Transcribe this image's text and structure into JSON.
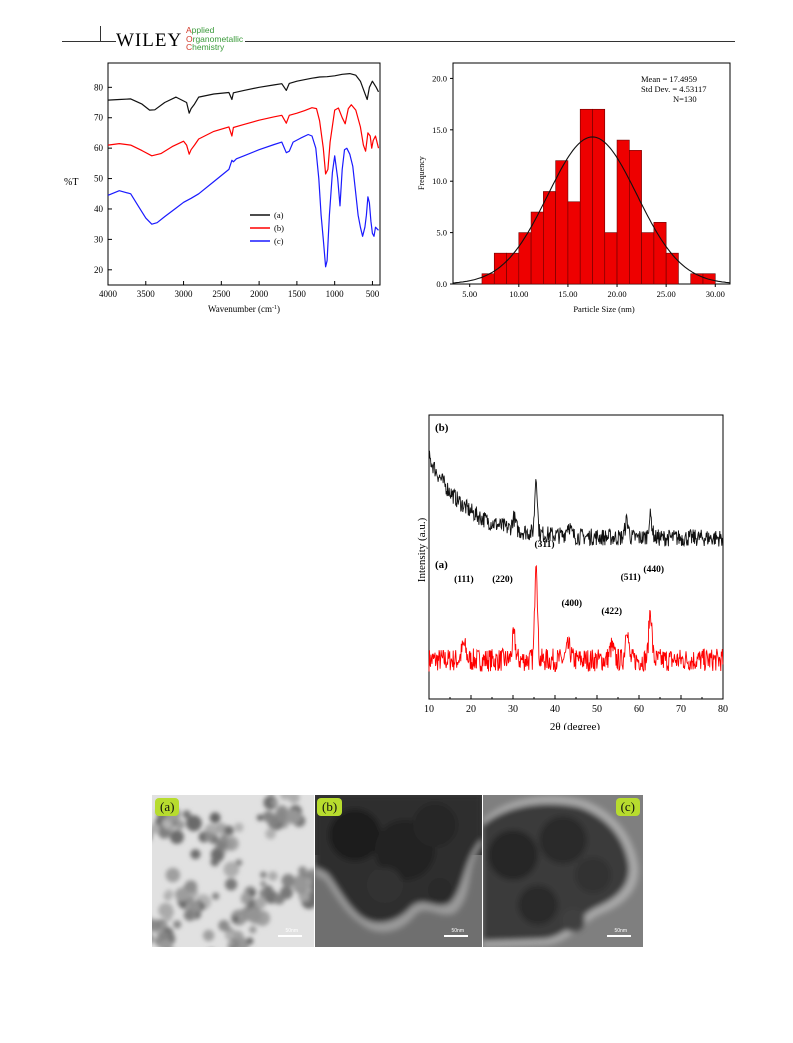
{
  "header": {
    "brand": "WILEY",
    "journal_lines": [
      {
        "cap": "A",
        "rest": "pplied"
      },
      {
        "cap": "O",
        "rest": "rganometallic"
      },
      {
        "cap": "C",
        "rest": "hemistry"
      }
    ]
  },
  "colors": {
    "red": "#ff0000",
    "blue": "#1a1aff",
    "black": "#111111",
    "label_bg": "#b7dc2e"
  },
  "chart_data": [
    {
      "type": "line",
      "id": "ftir",
      "xlabel": "Wavenumber (cm",
      "xlabel_sup": "-1",
      "xlabel_close": ")",
      "ylabel": "%T",
      "xlim": [
        4000,
        400
      ],
      "ylim": [
        15,
        88
      ],
      "xticks": [
        4000,
        3500,
        3000,
        2500,
        2000,
        1500,
        1000,
        500
      ],
      "yticks": [
        20,
        30,
        40,
        50,
        60,
        70,
        80
      ],
      "legend_position": "middle-right",
      "series": [
        {
          "name": "(a)",
          "color": "#111111",
          "points": [
            [
              4000,
              75.8
            ],
            [
              3850,
              76
            ],
            [
              3700,
              76.2
            ],
            [
              3550,
              74.5
            ],
            [
              3450,
              72.5
            ],
            [
              3380,
              72.6
            ],
            [
              3250,
              75
            ],
            [
              3100,
              76.8
            ],
            [
              2960,
              75
            ],
            [
              2925,
              71.5
            ],
            [
              2900,
              73
            ],
            [
              2855,
              74.5
            ],
            [
              2800,
              76.8
            ],
            [
              2600,
              77.8
            ],
            [
              2400,
              78.3
            ],
            [
              2360,
              76
            ],
            [
              2340,
              78.2
            ],
            [
              2200,
              79
            ],
            [
              2000,
              80
            ],
            [
              1800,
              80.8
            ],
            [
              1700,
              81.2
            ],
            [
              1640,
              79
            ],
            [
              1600,
              81.3
            ],
            [
              1500,
              82
            ],
            [
              1400,
              82.5
            ],
            [
              1300,
              83
            ],
            [
              1250,
              83.2
            ],
            [
              1200,
              83.4
            ],
            [
              1100,
              83.5
            ],
            [
              1000,
              83.8
            ],
            [
              900,
              84.3
            ],
            [
              800,
              84.5
            ],
            [
              720,
              84
            ],
            [
              660,
              82
            ],
            [
              600,
              78
            ],
            [
              570,
              76
            ],
            [
              540,
              80
            ],
            [
              500,
              82
            ],
            [
              450,
              80
            ],
            [
              420,
              78.5
            ]
          ]
        },
        {
          "name": "(b)",
          "color": "#ff0000",
          "points": [
            [
              4000,
              61
            ],
            [
              3850,
              61.5
            ],
            [
              3700,
              61
            ],
            [
              3550,
              59.2
            ],
            [
              3420,
              57.5
            ],
            [
              3300,
              58.2
            ],
            [
              3150,
              60.5
            ],
            [
              3000,
              62.3
            ],
            [
              2960,
              61
            ],
            [
              2925,
              58
            ],
            [
              2900,
              59.5
            ],
            [
              2855,
              61
            ],
            [
              2800,
              63
            ],
            [
              2600,
              65.5
            ],
            [
              2400,
              67
            ],
            [
              2360,
              64
            ],
            [
              2340,
              66.8
            ],
            [
              2200,
              67.8
            ],
            [
              2000,
              69.2
            ],
            [
              1800,
              70.3
            ],
            [
              1700,
              70.8
            ],
            [
              1640,
              68.2
            ],
            [
              1600,
              70.8
            ],
            [
              1500,
              71.5
            ],
            [
              1400,
              72.3
            ],
            [
              1300,
              73.3
            ],
            [
              1240,
              73
            ],
            [
              1200,
              69
            ],
            [
              1150,
              60
            ],
            [
              1120,
              51.5
            ],
            [
              1090,
              53
            ],
            [
              1060,
              62
            ],
            [
              1000,
              72.5
            ],
            [
              950,
              73.2
            ],
            [
              900,
              70
            ],
            [
              860,
              68
            ],
            [
              820,
              73
            ],
            [
              780,
              74.3
            ],
            [
              720,
              72.5
            ],
            [
              660,
              67
            ],
            [
              620,
              61
            ],
            [
              590,
              59
            ],
            [
              560,
              65
            ],
            [
              530,
              64
            ],
            [
              510,
              60
            ],
            [
              490,
              62.5
            ],
            [
              460,
              64
            ],
            [
              420,
              60
            ]
          ]
        },
        {
          "name": "(c)",
          "color": "#1a1aff",
          "points": [
            [
              4000,
              44.5
            ],
            [
              3850,
              46
            ],
            [
              3700,
              45
            ],
            [
              3600,
              41
            ],
            [
              3500,
              37
            ],
            [
              3420,
              35
            ],
            [
              3350,
              35.5
            ],
            [
              3250,
              37.5
            ],
            [
              3100,
              40.3
            ],
            [
              3000,
              42.2
            ],
            [
              2900,
              43.5
            ],
            [
              2800,
              45
            ],
            [
              2600,
              49
            ],
            [
              2400,
              53
            ],
            [
              2360,
              56
            ],
            [
              2340,
              55.5
            ],
            [
              2300,
              56.5
            ],
            [
              2200,
              57.5
            ],
            [
              2000,
              59.5
            ],
            [
              1800,
              61.2
            ],
            [
              1700,
              62
            ],
            [
              1640,
              58.5
            ],
            [
              1600,
              59
            ],
            [
              1550,
              62
            ],
            [
              1450,
              63.3
            ],
            [
              1350,
              64.5
            ],
            [
              1300,
              64
            ],
            [
              1250,
              60
            ],
            [
              1210,
              50
            ],
            [
              1180,
              38
            ],
            [
              1150,
              30
            ],
            [
              1120,
              21
            ],
            [
              1100,
              23
            ],
            [
              1070,
              38
            ],
            [
              1030,
              52
            ],
            [
              1000,
              57.5
            ],
            [
              960,
              50
            ],
            [
              930,
              41
            ],
            [
              900,
              53
            ],
            [
              870,
              59.5
            ],
            [
              840,
              60
            ],
            [
              800,
              58
            ],
            [
              760,
              54
            ],
            [
              720,
              45
            ],
            [
              690,
              38
            ],
            [
              660,
              34
            ],
            [
              630,
              31
            ],
            [
              600,
              34
            ],
            [
              580,
              38
            ],
            [
              560,
              44
            ],
            [
              540,
              42
            ],
            [
              520,
              36
            ],
            [
              500,
              32
            ],
            [
              480,
              31
            ],
            [
              460,
              34
            ],
            [
              420,
              33
            ]
          ]
        }
      ]
    },
    {
      "type": "bar",
      "id": "histogram",
      "xlabel": "Particle Size (nm)",
      "ylabel": "Frequency",
      "xlim": [
        3.3,
        31.5
      ],
      "ylim": [
        0,
        21.5
      ],
      "xticks": [
        "5.00",
        "10.00",
        "15.00",
        "20.00",
        "25.00",
        "30.00"
      ],
      "yticks": [
        "0.0",
        "5.0",
        "10.0",
        "15.0",
        "20.0"
      ],
      "bin_width": 1.25,
      "bins": [
        {
          "start": 6.25,
          "count": 1
        },
        {
          "start": 7.5,
          "count": 3
        },
        {
          "start": 8.75,
          "count": 3
        },
        {
          "start": 10.0,
          "count": 5
        },
        {
          "start": 11.25,
          "count": 7
        },
        {
          "start": 12.5,
          "count": 9
        },
        {
          "start": 13.75,
          "count": 12
        },
        {
          "start": 15.0,
          "count": 8
        },
        {
          "start": 16.25,
          "count": 17
        },
        {
          "start": 17.5,
          "count": 17
        },
        {
          "start": 18.75,
          "count": 5
        },
        {
          "start": 20.0,
          "count": 14
        },
        {
          "start": 21.25,
          "count": 13
        },
        {
          "start": 22.5,
          "count": 5
        },
        {
          "start": 23.75,
          "count": 6
        },
        {
          "start": 25.0,
          "count": 3
        },
        {
          "start": 27.5,
          "count": 1
        },
        {
          "start": 28.75,
          "count": 1
        }
      ],
      "fit": {
        "type": "normal",
        "mean": 17.4959,
        "std": 4.53117,
        "n": 130
      },
      "stats_lines": [
        "Mean = 17.4959",
        "Std Dev. = 4.53117",
        "N=130"
      ]
    },
    {
      "type": "line",
      "id": "xrd",
      "xlabel": "2θ (degree)",
      "ylabel": "Intensity (a.u.)",
      "xlim": [
        10,
        80
      ],
      "xticks": [
        10,
        20,
        30,
        40,
        50,
        60,
        70,
        80
      ],
      "series": [
        {
          "name": "(a)",
          "color": "#ff0000",
          "baseline": 0.3,
          "noise": 0.11,
          "peaks": [
            [
              18.3,
              0.14,
              0.5
            ],
            [
              30.2,
              0.22,
              0.4
            ],
            [
              35.5,
              1.0,
              0.3
            ],
            [
              43.2,
              0.12,
              0.5
            ],
            [
              53.5,
              0.12,
              0.5
            ],
            [
              57.1,
              0.34,
              0.35
            ],
            [
              62.7,
              0.48,
              0.35
            ]
          ]
        },
        {
          "name": "(b)",
          "color": "#111111",
          "baseline": 0.35,
          "noise": 0.09,
          "decay": 0.85,
          "peaks": [
            [
              30.2,
              0.12,
              0.4
            ],
            [
              35.5,
              0.6,
              0.3
            ],
            [
              43.2,
              0.12,
              0.5
            ],
            [
              57.1,
              0.18,
              0.4
            ],
            [
              62.7,
              0.22,
              0.4
            ]
          ]
        }
      ],
      "annotations": [
        "(111)",
        "(220)",
        "(311)",
        "(400)",
        "(422)",
        "(511)",
        "(440)"
      ]
    }
  ],
  "tem": {
    "panels": [
      {
        "label": "(a)",
        "scale": "50nm"
      },
      {
        "label": "(b)",
        "scale": "50nm"
      },
      {
        "label": "(c)",
        "scale": "50nm"
      }
    ]
  }
}
